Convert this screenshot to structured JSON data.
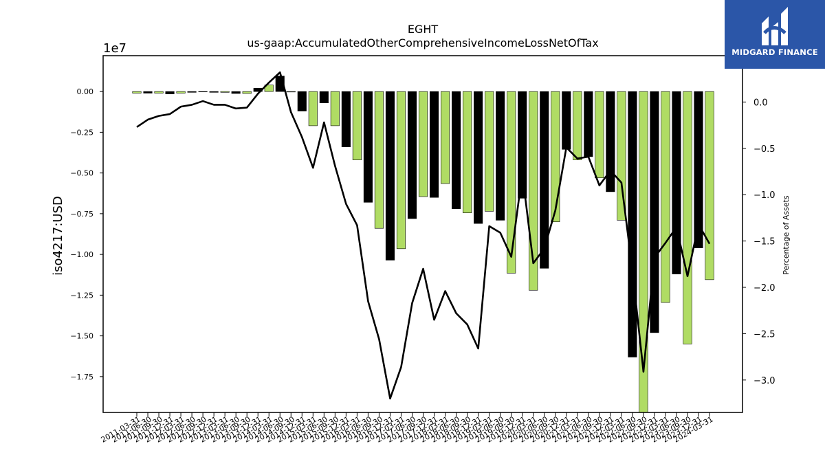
{
  "brand": {
    "name": "MIDGARD FINANCE"
  },
  "colors": {
    "positive_bar": "#b0dc64",
    "negative_bar": "#000000",
    "line": "#000000"
  },
  "chart_data": {
    "type": "bar",
    "title": "EGHT",
    "subtitle": "us-gaap:AccumulatedOtherComprehensiveIncomeLossNetOfTax",
    "ylabel": "iso4217:USD",
    "y_offset_label": "1e7",
    "y2label": "Percentage of Assets",
    "ylim": [
      -19700000,
      2200000
    ],
    "y2lim": [
      -3.35,
      0.5
    ],
    "yticks": [
      0,
      -2500000,
      -5000000,
      -7500000,
      -10000000,
      -12500000,
      -15000000,
      -17500000
    ],
    "ytick_labels": [
      "0.00",
      "−0.25",
      "−0.50",
      "−0.75",
      "−1.00",
      "−1.25",
      "−1.50",
      "−1.75"
    ],
    "y2ticks": [
      0,
      -0.5,
      -1,
      -1.5,
      -2,
      -2.5,
      -3
    ],
    "y2tick_labels": [
      "0.0",
      "−0.5",
      "−1.0",
      "−1.5",
      "−2.0",
      "−2.5",
      "−3.0"
    ],
    "grid": false,
    "categories": [
      "2011-03-31",
      "2011-06-30",
      "2011-09-30",
      "2011-12-31",
      "2012-03-31",
      "2012-06-30",
      "2012-09-30",
      "2012-12-31",
      "2013-03-31",
      "2013-06-30",
      "2013-09-30",
      "2013-12-31",
      "2014-03-31",
      "2014-06-30",
      "2014-09-30",
      "2014-12-31",
      "2015-03-31",
      "2015-06-30",
      "2015-09-30",
      "2015-12-31",
      "2016-03-31",
      "2016-06-30",
      "2016-09-30",
      "2016-12-31",
      "2017-03-31",
      "2017-06-30",
      "2017-09-30",
      "2017-12-31",
      "2018-03-31",
      "2018-06-30",
      "2018-09-30",
      "2018-12-31",
      "2019-03-31",
      "2019-06-30",
      "2019-09-30",
      "2019-12-31",
      "2020-03-31",
      "2020-06-30",
      "2020-09-30",
      "2020-12-31",
      "2021-03-31",
      "2021-06-30",
      "2021-09-30",
      "2021-12-31",
      "2022-03-31",
      "2022-06-30",
      "2022-09-30",
      "2022-12-31",
      "2023-03-31",
      "2023-06-30",
      "2023-09-30",
      "2023-12-31",
      "2024-03-31"
    ],
    "series": [
      {
        "type": "bar",
        "values": [
          -100000,
          -100000,
          -100000,
          -150000,
          -100000,
          -50000,
          -20000,
          -50000,
          -50000,
          -120000,
          -120000,
          200000,
          400000,
          950000,
          -30000,
          -1200000,
          -2100000,
          -700000,
          -2100000,
          -3400000,
          -4200000,
          -6800000,
          -8400000,
          -10350000,
          -9650000,
          -7800000,
          -6450000,
          -6500000,
          -5650000,
          -7200000,
          -7450000,
          -8100000,
          -7350000,
          -7900000,
          -11150000,
          -6550000,
          -12200000,
          -10850000,
          -8000000,
          -3550000,
          -4200000,
          -4000000,
          -5300000,
          -6150000,
          -7900000,
          -16300000,
          -19700000,
          -14800000,
          -12950000,
          -11200000,
          -15500000,
          -9600000,
          -11550000
        ]
      },
      {
        "type": "line",
        "axis": "right",
        "values": [
          -0.27,
          -0.19,
          -0.15,
          -0.13,
          -0.05,
          -0.03,
          0.01,
          -0.03,
          -0.03,
          -0.07,
          -0.06,
          0.09,
          0.21,
          0.32,
          -0.11,
          -0.38,
          -0.71,
          -0.22,
          -0.69,
          -1.1,
          -1.33,
          -2.15,
          -2.56,
          -3.2,
          -2.86,
          -2.17,
          -1.8,
          -2.35,
          -2.04,
          -2.28,
          -2.4,
          -2.66,
          -1.34,
          -1.41,
          -1.67,
          -0.77,
          -1.74,
          -1.58,
          -1.17,
          -0.49,
          -0.61,
          -0.59,
          -0.9,
          -0.74,
          -0.87,
          -1.82,
          -2.91,
          -1.68,
          -1.52,
          -1.35,
          -1.88,
          -1.32,
          -1.53
        ]
      }
    ]
  }
}
